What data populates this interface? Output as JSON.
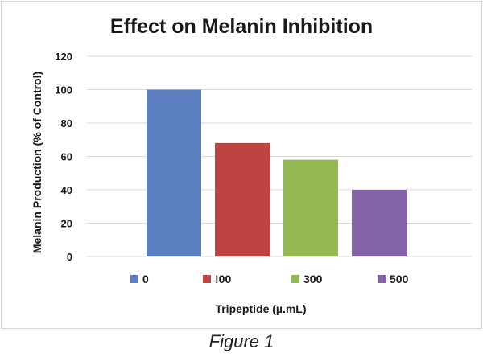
{
  "caption": "Figure 1",
  "chart_data": {
    "type": "bar",
    "title": "Effect on Melanin Inhibition",
    "xlabel": "Tripeptide (µ.mL)",
    "ylabel": "Melanin Production (% of Control)",
    "ylim": [
      0,
      120
    ],
    "yticks": [
      0,
      20,
      40,
      60,
      80,
      100,
      120
    ],
    "grid": true,
    "legend_position": "bottom",
    "categories": [
      "0",
      "!00",
      "300",
      "500"
    ],
    "values": [
      100,
      68,
      58,
      40
    ],
    "colors": [
      "#5b7fc0",
      "#bf4441",
      "#93b854",
      "#8263a6"
    ],
    "grid_color": "#d9d9d9"
  }
}
